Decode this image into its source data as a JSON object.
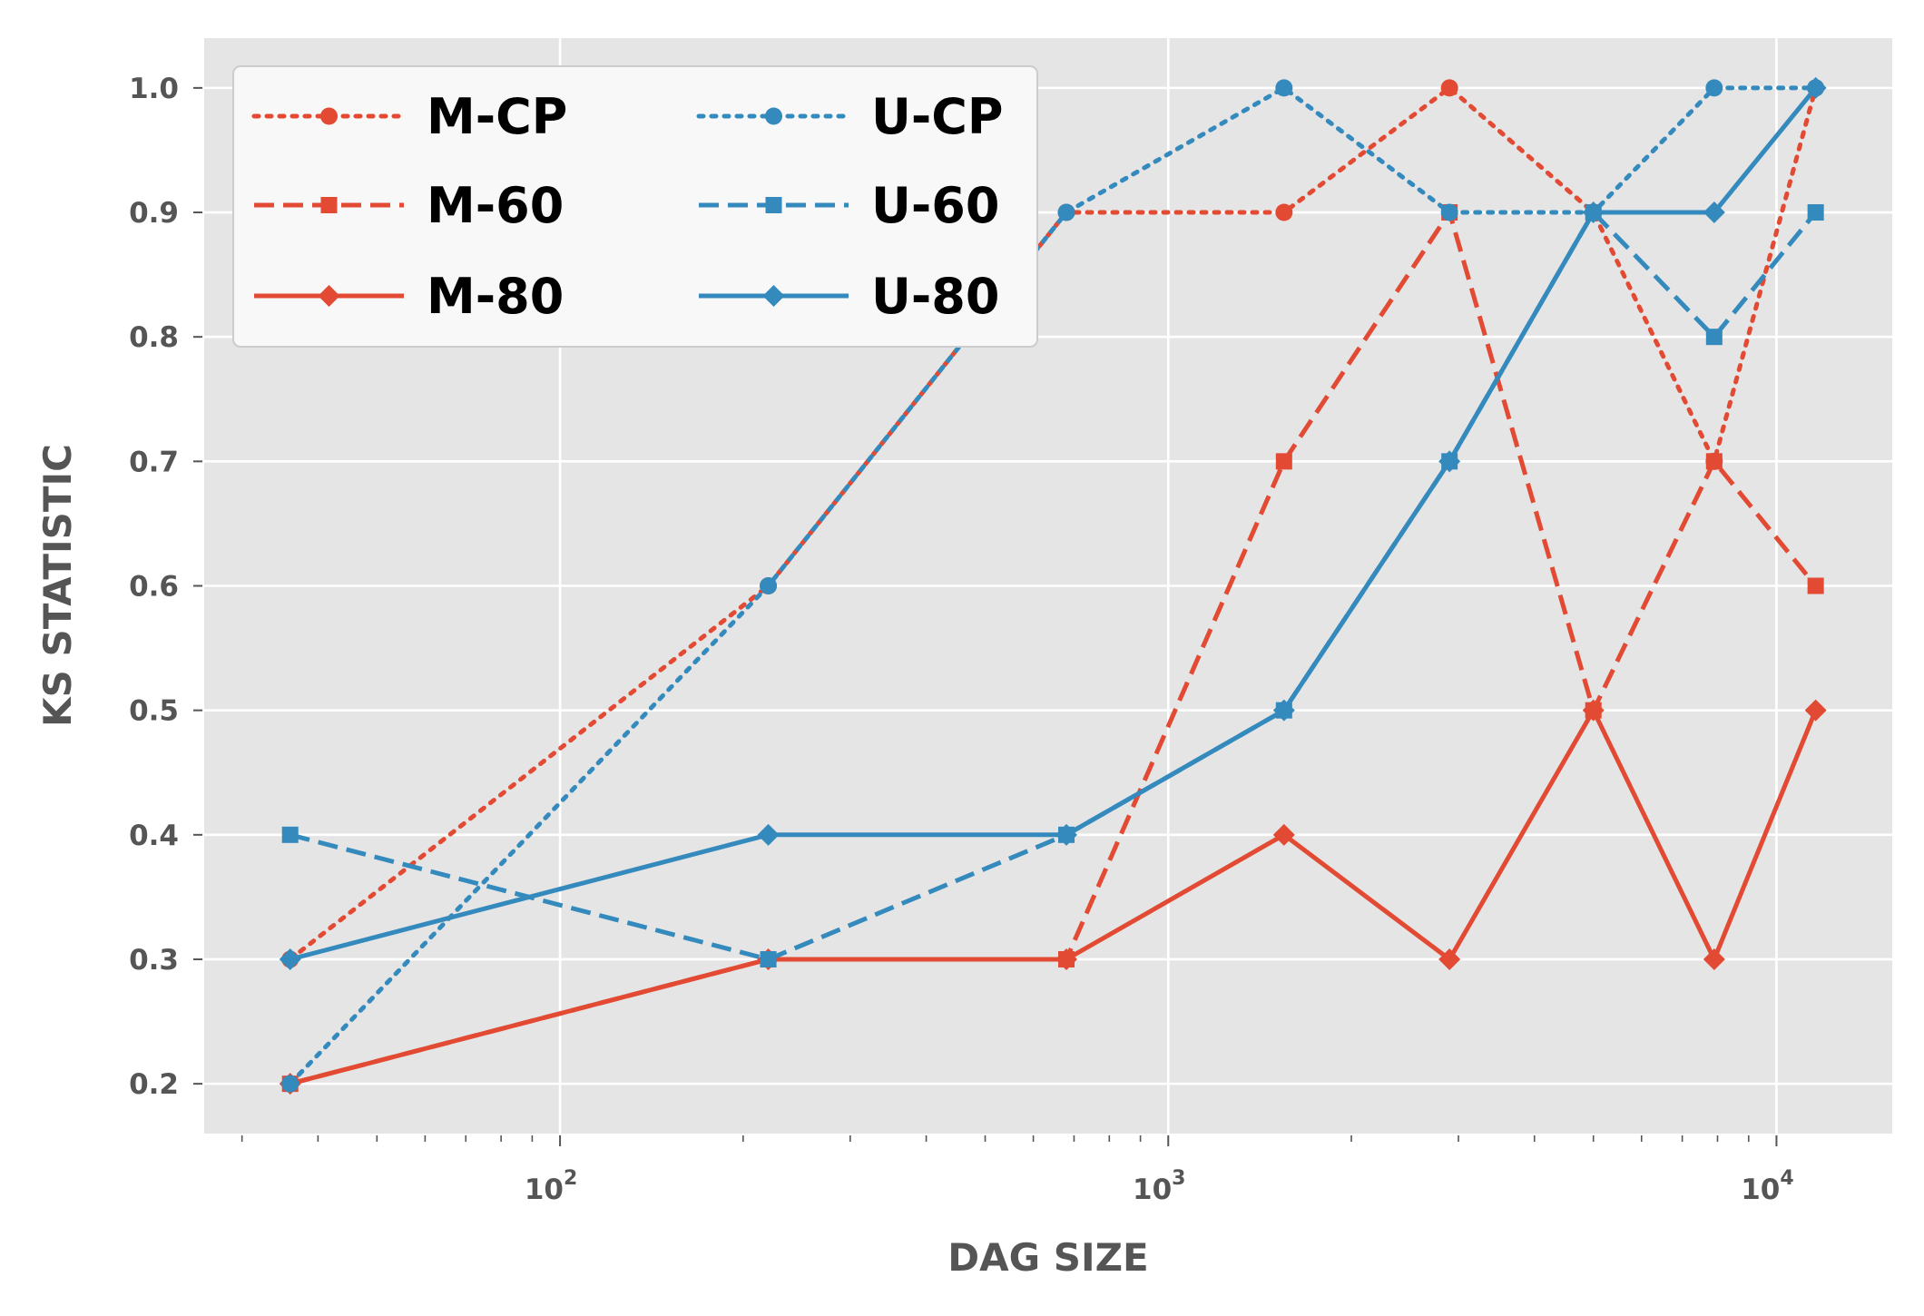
{
  "chart_data": {
    "type": "line",
    "xscale": "log",
    "xlabel": "DAG SIZE",
    "ylabel": "KS STATISTIC",
    "xlim": [
      26,
      15500
    ],
    "ylim": [
      0.16,
      1.04
    ],
    "xticks": [
      {
        "value": 100,
        "base": "10",
        "exp": "2"
      },
      {
        "value": 1000,
        "base": "10",
        "exp": "3"
      },
      {
        "value": 10000,
        "base": "10",
        "exp": "4"
      }
    ],
    "yticks": [
      "0.2",
      "0.3",
      "0.4",
      "0.5",
      "0.6",
      "0.7",
      "0.8",
      "0.9",
      "1.0"
    ],
    "grid": true,
    "legend_position": "top-left",
    "x": [
      36,
      220,
      680,
      1550,
      2900,
      5000,
      7900,
      11600
    ],
    "series": [
      {
        "name": "M-CP",
        "color": "#E24A33",
        "dash": "dotted",
        "marker": "circle",
        "values": [
          0.3,
          0.6,
          0.9,
          0.9,
          1.0,
          0.9,
          0.7,
          1.0
        ]
      },
      {
        "name": "M-60",
        "color": "#E24A33",
        "dash": "dashed",
        "marker": "square",
        "values": [
          0.2,
          0.3,
          0.3,
          0.7,
          0.9,
          0.5,
          0.7,
          0.6
        ]
      },
      {
        "name": "M-80",
        "color": "#E24A33",
        "dash": "solid",
        "marker": "diamond",
        "values": [
          0.2,
          0.3,
          0.3,
          0.4,
          0.3,
          0.5,
          0.3,
          0.5
        ]
      },
      {
        "name": "U-CP",
        "color": "#348ABD",
        "dash": "dotted",
        "marker": "circle",
        "values": [
          0.2,
          0.6,
          0.9,
          1.0,
          0.9,
          0.9,
          1.0,
          1.0
        ]
      },
      {
        "name": "U-60",
        "color": "#348ABD",
        "dash": "dashed",
        "marker": "square",
        "values": [
          0.4,
          0.3,
          0.4,
          0.5,
          0.7,
          0.9,
          0.8,
          0.9
        ]
      },
      {
        "name": "U-80",
        "color": "#348ABD",
        "dash": "solid",
        "marker": "diamond",
        "values": [
          0.3,
          0.4,
          0.4,
          0.5,
          0.7,
          0.9,
          0.9,
          1.0
        ]
      }
    ]
  },
  "colors": {
    "plot_background": "#E5E5E5",
    "grid": "#FFFFFF",
    "legend_background": "#F8F8F8",
    "legend_border": "#CCCCCC",
    "tick_color": "#555555"
  }
}
